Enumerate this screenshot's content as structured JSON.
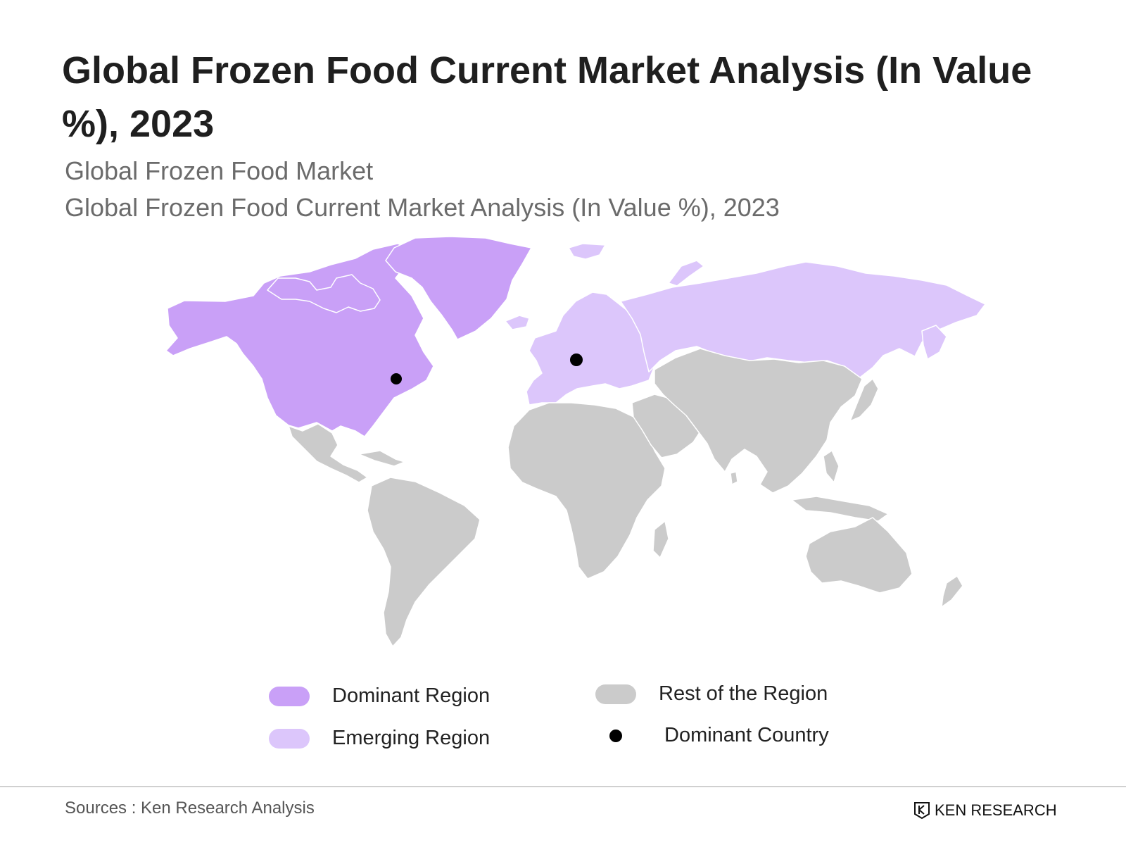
{
  "title": "Global Frozen Food Current Market Analysis (In Value %), 2023",
  "subtitle_1": "Global Frozen Food Market",
  "subtitle_2": "Global Frozen Food Current Market Analysis (In Value %), 2023",
  "colors": {
    "dominant": "#c9a0f7",
    "emerging": "#dcc6fb",
    "rest": "#cbcbcb",
    "dominant_country": "#000000",
    "border": "#ffffff"
  },
  "map": {
    "regions": {
      "dominant": [
        "North America",
        "Greenland"
      ],
      "emerging": [
        "Europe",
        "Russia"
      ],
      "rest": [
        "Central America",
        "South America",
        "Africa",
        "Middle East",
        "Asia",
        "Oceania"
      ]
    },
    "dominant_country_markers": [
      "Canada",
      "Germany"
    ]
  },
  "legend": {
    "dominant": "Dominant Region",
    "emerging": "Emerging Region",
    "rest": "Rest of the Region",
    "dominant_country": "Dominant Country"
  },
  "footer": {
    "source": "Sources : Ken Research Analysis",
    "logo_text": "KEN RESEARCH"
  }
}
